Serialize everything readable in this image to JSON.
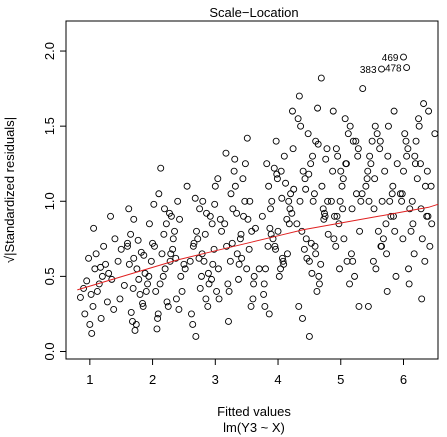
{
  "chart_data": {
    "type": "scatter",
    "title": "Scale−Location",
    "xlabel": "Fitted values",
    "xlabel_sub": "lm(Y3 ~ X)",
    "ylabel": "√|Standardized residuals|",
    "xlim": [
      0.62,
      6.55
    ],
    "ylim": [
      -0.05,
      2.2
    ],
    "xticks": [
      1,
      2,
      3,
      4,
      5,
      6
    ],
    "xtick_labels": [
      "1",
      "2",
      "3",
      "4",
      "5",
      "6"
    ],
    "yticks": [
      0.0,
      0.5,
      1.0,
      1.5,
      2.0
    ],
    "ytick_labels": [
      "0.0",
      "0.5",
      "1.0",
      "1.5",
      "2.0"
    ],
    "point_color": "#000000",
    "smooth_color": "#e02020",
    "annotations": [
      {
        "label": "469",
        "x": 6.0,
        "y": 1.96
      },
      {
        "label": "383",
        "x": 5.65,
        "y": 1.88
      },
      {
        "label": "478",
        "x": 6.05,
        "y": 1.89
      }
    ],
    "smooth": {
      "x": [
        0.8,
        1.2,
        1.6,
        2.0,
        2.4,
        2.8,
        3.2,
        3.6,
        4.0,
        4.4,
        4.8,
        5.2,
        5.6,
        6.0,
        6.4,
        6.55
      ],
      "y": [
        0.41,
        0.46,
        0.51,
        0.56,
        0.61,
        0.65,
        0.69,
        0.73,
        0.77,
        0.81,
        0.84,
        0.87,
        0.9,
        0.93,
        0.96,
        0.98
      ]
    },
    "points": {
      "x": [
        0.95,
        1.02,
        1.08,
        0.98,
        1.15,
        1.22,
        1.05,
        0.9,
        1.3,
        1.1,
        1.18,
        1.25,
        0.85,
        1.35,
        1.4,
        1.0,
        1.12,
        1.28,
        1.45,
        1.5,
        1.06,
        1.2,
        1.38,
        0.92,
        1.55,
        1.6,
        1.33,
        1.48,
        1.03,
        1.17,
        1.62,
        1.7,
        1.78,
        1.85,
        1.65,
        1.75,
        1.9,
        1.68,
        1.82,
        1.95,
        1.72,
        1.88,
        1.6,
        1.8,
        1.98,
        1.66,
        1.77,
        1.92,
        1.7,
        1.84,
        1.63,
        1.94,
        1.74,
        1.86,
        1.69,
        2.0,
        2.1,
        2.2,
        2.3,
        2.05,
        2.15,
        2.25,
        2.35,
        2.4,
        2.45,
        2.08,
        2.18,
        2.28,
        2.38,
        2.02,
        2.12,
        2.22,
        2.32,
        2.42,
        2.5,
        2.55,
        2.07,
        2.17,
        2.27,
        2.37,
        2.47,
        2.03,
        2.13,
        2.23,
        2.33,
        2.43,
        2.52,
        2.09,
        2.19,
        2.29,
        2.6,
        2.7,
        2.8,
        2.9,
        2.65,
        2.75,
        2.85,
        2.95,
        3.0,
        3.05,
        2.62,
        2.72,
        2.82,
        2.92,
        3.02,
        2.68,
        2.78,
        2.88,
        2.98,
        3.08,
        2.64,
        2.74,
        2.84,
        2.94,
        3.04,
        2.66,
        2.76,
        2.86,
        2.96,
        3.06,
        3.1,
        2.69,
        2.79,
        2.89,
        2.99,
        3.15,
        3.25,
        3.35,
        3.45,
        3.2,
        3.3,
        3.4,
        3.5,
        3.55,
        3.6,
        3.18,
        3.28,
        3.38,
        3.48,
        3.58,
        3.22,
        3.32,
        3.42,
        3.52,
        3.62,
        3.17,
        3.27,
        3.37,
        3.47,
        3.57,
        3.24,
        3.34,
        3.44,
        3.54,
        3.64,
        3.7,
        3.21,
        3.31,
        3.41,
        3.51,
        3.61,
        3.75,
        3.85,
        3.95,
        4.05,
        3.8,
        3.9,
        4.0,
        4.1,
        4.15,
        4.2,
        3.78,
        3.88,
        3.98,
        4.08,
        4.18,
        3.82,
        3.92,
        4.02,
        4.12,
        4.22,
        3.77,
        3.87,
        3.97,
        4.07,
        4.17,
        3.84,
        3.94,
        4.04,
        4.14,
        4.24,
        4.25,
        3.79,
        3.89,
        3.99,
        4.09,
        4.19,
        4.23,
        3.86,
        3.96,
        4.06,
        4.3,
        4.4,
        4.5,
        4.6,
        4.35,
        4.45,
        4.55,
        4.65,
        4.7,
        4.75,
        4.32,
        4.42,
        4.52,
        4.62,
        4.72,
        4.38,
        4.48,
        4.58,
        4.68,
        4.78,
        4.33,
        4.43,
        4.53,
        4.63,
        4.73,
        4.36,
        4.46,
        4.56,
        4.66,
        4.76,
        4.8,
        4.34,
        4.44,
        4.54,
        4.64,
        4.74,
        4.39,
        4.49,
        4.59,
        4.69,
        4.79,
        4.5,
        4.6,
        4.85,
        4.95,
        5.05,
        5.15,
        4.9,
        5.0,
        5.1,
        5.2,
        5.25,
        5.3,
        4.88,
        4.98,
        5.08,
        5.18,
        5.28,
        4.92,
        5.02,
        5.12,
        5.22,
        5.32,
        4.87,
        4.97,
        5.07,
        5.17,
        5.27,
        4.94,
        5.04,
        5.14,
        5.24,
        5.34,
        5.35,
        4.89,
        4.99,
        5.09,
        5.19,
        5.29,
        4.93,
        5.03,
        5.4,
        5.5,
        5.6,
        5.7,
        5.45,
        5.55,
        5.65,
        5.75,
        5.8,
        5.85,
        5.42,
        5.52,
        5.62,
        5.72,
        5.82,
        5.48,
        5.58,
        5.68,
        5.78,
        5.88,
        5.43,
        5.53,
        5.63,
        5.73,
        5.83,
        5.46,
        5.56,
        5.66,
        5.76,
        5.86,
        5.9,
        5.44,
        5.54,
        5.64,
        5.74,
        5.84,
        5.95,
        6.05,
        6.15,
        6.25,
        6.0,
        6.1,
        6.2,
        6.3,
        6.35,
        6.4,
        5.97,
        6.07,
        6.17,
        6.27,
        6.37,
        6.02,
        6.12,
        6.22,
        6.32,
        6.42,
        5.98,
        6.08,
        6.18,
        6.28,
        6.38,
        6.45,
        6.04,
        6.14,
        6.24,
        6.34,
        6.44,
        5.99,
        6.09,
        6.19,
        6.29,
        6.39,
        6.5,
        5.65,
        6.0,
        6.05
      ],
      "y": [
        0.47,
        0.38,
        0.55,
        0.62,
        0.45,
        0.7,
        0.3,
        0.42,
        0.52,
        0.65,
        0.22,
        0.58,
        0.36,
        0.48,
        0.75,
        0.18,
        0.4,
        0.33,
        0.6,
        0.68,
        0.82,
        0.5,
        0.28,
        0.25,
        0.44,
        0.72,
        0.9,
        0.35,
        0.12,
        0.56,
        0.95,
        0.62,
        0.48,
        0.3,
        0.78,
        0.55,
        0.4,
        0.2,
        0.66,
        0.85,
        0.14,
        0.52,
        0.7,
        0.38,
        0.6,
        0.26,
        0.74,
        0.45,
        0.88,
        0.32,
        0.58,
        0.5,
        0.18,
        0.64,
        0.42,
        0.72,
        1.05,
        0.55,
        0.9,
        0.4,
        0.65,
        0.3,
        0.8,
        1.0,
        0.5,
        0.22,
        0.78,
        0.6,
        0.35,
        0.98,
        0.45,
        0.85,
        0.68,
        0.28,
        0.58,
        1.1,
        0.15,
        0.5,
        0.92,
        0.62,
        0.4,
        0.7,
        1.22,
        0.33,
        0.75,
        0.88,
        0.55,
        0.25,
        0.95,
        0.65,
        0.6,
        0.8,
        1.0,
        0.45,
        0.7,
        0.95,
        0.35,
        0.85,
        1.1,
        0.55,
        0.25,
        0.75,
        0.6,
        0.9,
        0.4,
        1.02,
        0.5,
        0.3,
        0.68,
        0.88,
        0.18,
        0.62,
        0.78,
        0.48,
        1.15,
        0.72,
        0.42,
        0.92,
        0.58,
        0.35,
        0.8,
        0.1,
        0.65,
        0.52,
        0.98,
        0.85,
        1.05,
        0.65,
        0.9,
        0.45,
        1.2,
        0.75,
        0.55,
        1.0,
        0.35,
        0.7,
        0.95,
        0.58,
        1.25,
        0.8,
        0.4,
        1.1,
        0.62,
        0.88,
        0.5,
        1.32,
        0.72,
        0.48,
        1.0,
        0.3,
        0.6,
        0.92,
        1.15,
        0.68,
        0.82,
        0.55,
        0.2,
        1.28,
        0.78,
        1.42,
        0.45,
        0.9,
        1.1,
        0.7,
        1.2,
        0.55,
        1.0,
        0.8,
        1.3,
        0.65,
        1.05,
        0.45,
        0.95,
        1.18,
        0.6,
        0.85,
        1.25,
        0.75,
        0.5,
        1.12,
        0.92,
        0.38,
        0.82,
        1.4,
        0.62,
        1.0,
        0.7,
        1.22,
        0.55,
        0.88,
        1.35,
        1.08,
        0.3,
        0.78,
        1.15,
        0.58,
        0.95,
        1.6,
        0.25,
        0.68,
        1.02,
        0.85,
        1.2,
        0.6,
        1.4,
        1.0,
        0.75,
        1.3,
        0.5,
        1.1,
        0.9,
        1.55,
        0.68,
        1.25,
        0.4,
        0.95,
        0.8,
        1.45,
        1.05,
        0.58,
        1.35,
        0.3,
        1.15,
        0.72,
        1.62,
        0.88,
        1.5,
        0.62,
        1.0,
        0.45,
        1.28,
        0.78,
        1.7,
        1.08,
        0.52,
        1.38,
        0.92,
        0.22,
        1.18,
        0.7,
        1.82,
        1.0,
        0.1,
        0.65,
        1.0,
        1.3,
        0.75,
        1.5,
        0.9,
        1.2,
        0.6,
        1.4,
        1.05,
        0.8,
        1.6,
        0.55,
        1.25,
        0.95,
        1.35,
        0.7,
        1.1,
        1.45,
        0.5,
        1.0,
        1.2,
        0.85,
        1.55,
        0.65,
        1.3,
        0.9,
        1.15,
        0.45,
        1.4,
        1.05,
        1.75,
        0.75,
        1.0,
        1.25,
        0.6,
        0.3,
        1.35,
        0.95,
        1.1,
        1.4,
        0.8,
        1.2,
        1.0,
        1.5,
        0.7,
        1.3,
        0.9,
        1.6,
        1.15,
        0.6,
        1.35,
        0.85,
        1.05,
        1.25,
        1.45,
        0.75,
        1.0,
        0.5,
        1.2,
        0.95,
        1.4,
        0.65,
        1.1,
        1.3,
        0.55,
        1.0,
        1.5,
        0.8,
        1.25,
        0.3,
        1.15,
        0.7,
        0.4,
        0.9,
        1.05,
        1.3,
        0.85,
        1.5,
        1.2,
        0.95,
        1.4,
        0.75,
        1.1,
        1.6,
        1.0,
        1.35,
        0.65,
        1.25,
        0.9,
        1.45,
        0.8,
        1.15,
        1.65,
        0.7,
        1.05,
        0.55,
        1.3,
        0.95,
        1.2,
        0.85,
        1.4,
        1.0,
        1.55,
        0.6,
        1.1,
        0.75,
        0.45,
        1.25,
        0.35,
        0.9,
        1.45,
        1.88,
        1.96,
        1.89
      ]
    }
  }
}
